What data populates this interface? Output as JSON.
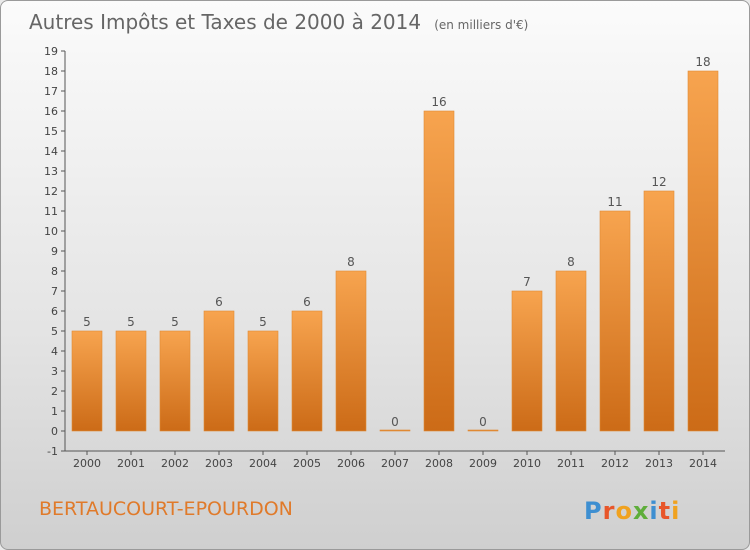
{
  "title": "Autres Impôts et Taxes de 2000 à 2014",
  "subtitle": "(en milliers d'€)",
  "commune": "BERTAUCOURT-EPOURDON",
  "logo": "Proxiti",
  "colors": {
    "bar_light": "#f7a44f",
    "bar_dark": "#cc6b17",
    "commune_text": "#e07a2a",
    "title_text": "#666666"
  },
  "chart_data": {
    "type": "bar",
    "categories": [
      "2000",
      "2001",
      "2002",
      "2003",
      "2004",
      "2005",
      "2006",
      "2007",
      "2008",
      "2009",
      "2010",
      "2011",
      "2012",
      "2013",
      "2014"
    ],
    "values": [
      5,
      5,
      5,
      6,
      5,
      6,
      8,
      0,
      16,
      0,
      7,
      8,
      11,
      12,
      18
    ],
    "ylim": [
      -1,
      19
    ],
    "yticks": [
      -1,
      0,
      1,
      2,
      3,
      4,
      5,
      6,
      7,
      8,
      9,
      10,
      11,
      12,
      13,
      14,
      15,
      16,
      17,
      18,
      19
    ],
    "xlabel": "",
    "ylabel": "",
    "grid": false,
    "legend": "none"
  }
}
